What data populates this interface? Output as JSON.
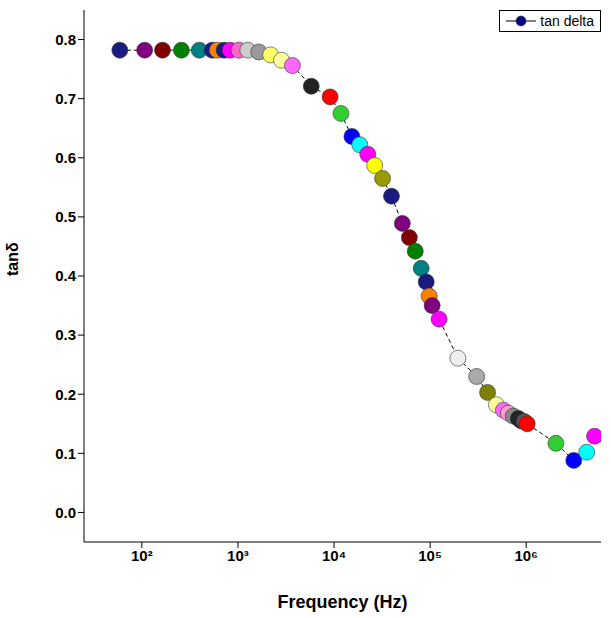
{
  "chart_data": {
    "type": "line",
    "x_label": "Frequency (Hz)",
    "y_label": "tanδ",
    "log": "x",
    "grid": false,
    "legend": "upper right",
    "xlim": [
      25,
      6000000
    ],
    "xticks": [
      {
        "value": 100,
        "label": "10²"
      },
      {
        "value": 1000,
        "label": "10³"
      },
      {
        "value": 10000,
        "label": "10⁴"
      },
      {
        "value": 100000,
        "label": "10⁵"
      },
      {
        "value": 1000000,
        "label": "10⁶"
      }
    ],
    "ylim": [
      -0.05,
      0.85
    ],
    "yticks": [
      {
        "value": 0,
        "label": "0.0"
      },
      0.1,
      0.2,
      0.3,
      0.4,
      0.5,
      0.6,
      0.7,
      0.8
    ],
    "x": [
      59,
      107,
      164,
      258,
      396,
      540,
      608,
      718,
      828,
      1024,
      1267,
      1646,
      2188,
      2843,
      3690,
      5795,
      9100,
      11800,
      15350,
      18540,
      22440,
      26490,
      32000,
      39600,
      51400,
      60800,
      70000,
      80700,
      91000,
      97700,
      105000,
      124000,
      194600,
      305000,
      396000,
      490000,
      579000,
      652000,
      734000,
      827000,
      888000,
      953000,
      1023000,
      2036000,
      3125000,
      4260000,
      5140000
    ],
    "series": [
      {
        "name": "tan delta",
        "color": "#000080",
        "marker": "circle",
        "line_style": "dashed",
        "values": [
          0.782,
          0.782,
          0.782,
          0.782,
          0.782,
          0.782,
          0.782,
          0.782,
          0.782,
          0.782,
          0.782,
          0.779,
          0.774,
          0.765,
          0.756,
          0.721,
          0.703,
          0.675,
          0.636,
          0.622,
          0.606,
          0.587,
          0.565,
          0.535,
          0.489,
          0.465,
          0.442,
          0.413,
          0.39,
          0.366,
          0.35,
          0.327,
          0.261,
          0.23,
          0.203,
          0.182,
          0.173,
          0.168,
          0.163,
          0.159,
          0.155,
          0.154,
          0.15,
          0.117,
          0.088,
          0.102,
          0.129
        ],
        "colors": [
          "#1a1a80",
          "#800080",
          "#800000",
          "#008000",
          "#008080",
          "#1a1a80",
          "#ff8000",
          "#1a1a80",
          "#ff00ff",
          "#ff66cc",
          "#cccccc",
          "#999999",
          "#ffff66",
          "#ffff99",
          "#ff66ff",
          "#222222",
          "#ff0000",
          "#33cc33",
          "#0000ff",
          "#00ffff",
          "#ff00ff",
          "#ffff00",
          "#999900",
          "#1a1a80",
          "#800080",
          "#800000",
          "#008000",
          "#008080",
          "#1a1a80",
          "#ff8000",
          "#800080",
          "#ff00ff",
          "#eeeeee",
          "#aaaaaa",
          "#808000",
          "#ffff99",
          "#ff66ff",
          "#ff99cc",
          "#888888",
          "#222222",
          "#222222",
          "#555555",
          "#ff0000",
          "#33cc33",
          "#0000ff",
          "#00ffff",
          "#ff00ff"
        ]
      }
    ]
  }
}
